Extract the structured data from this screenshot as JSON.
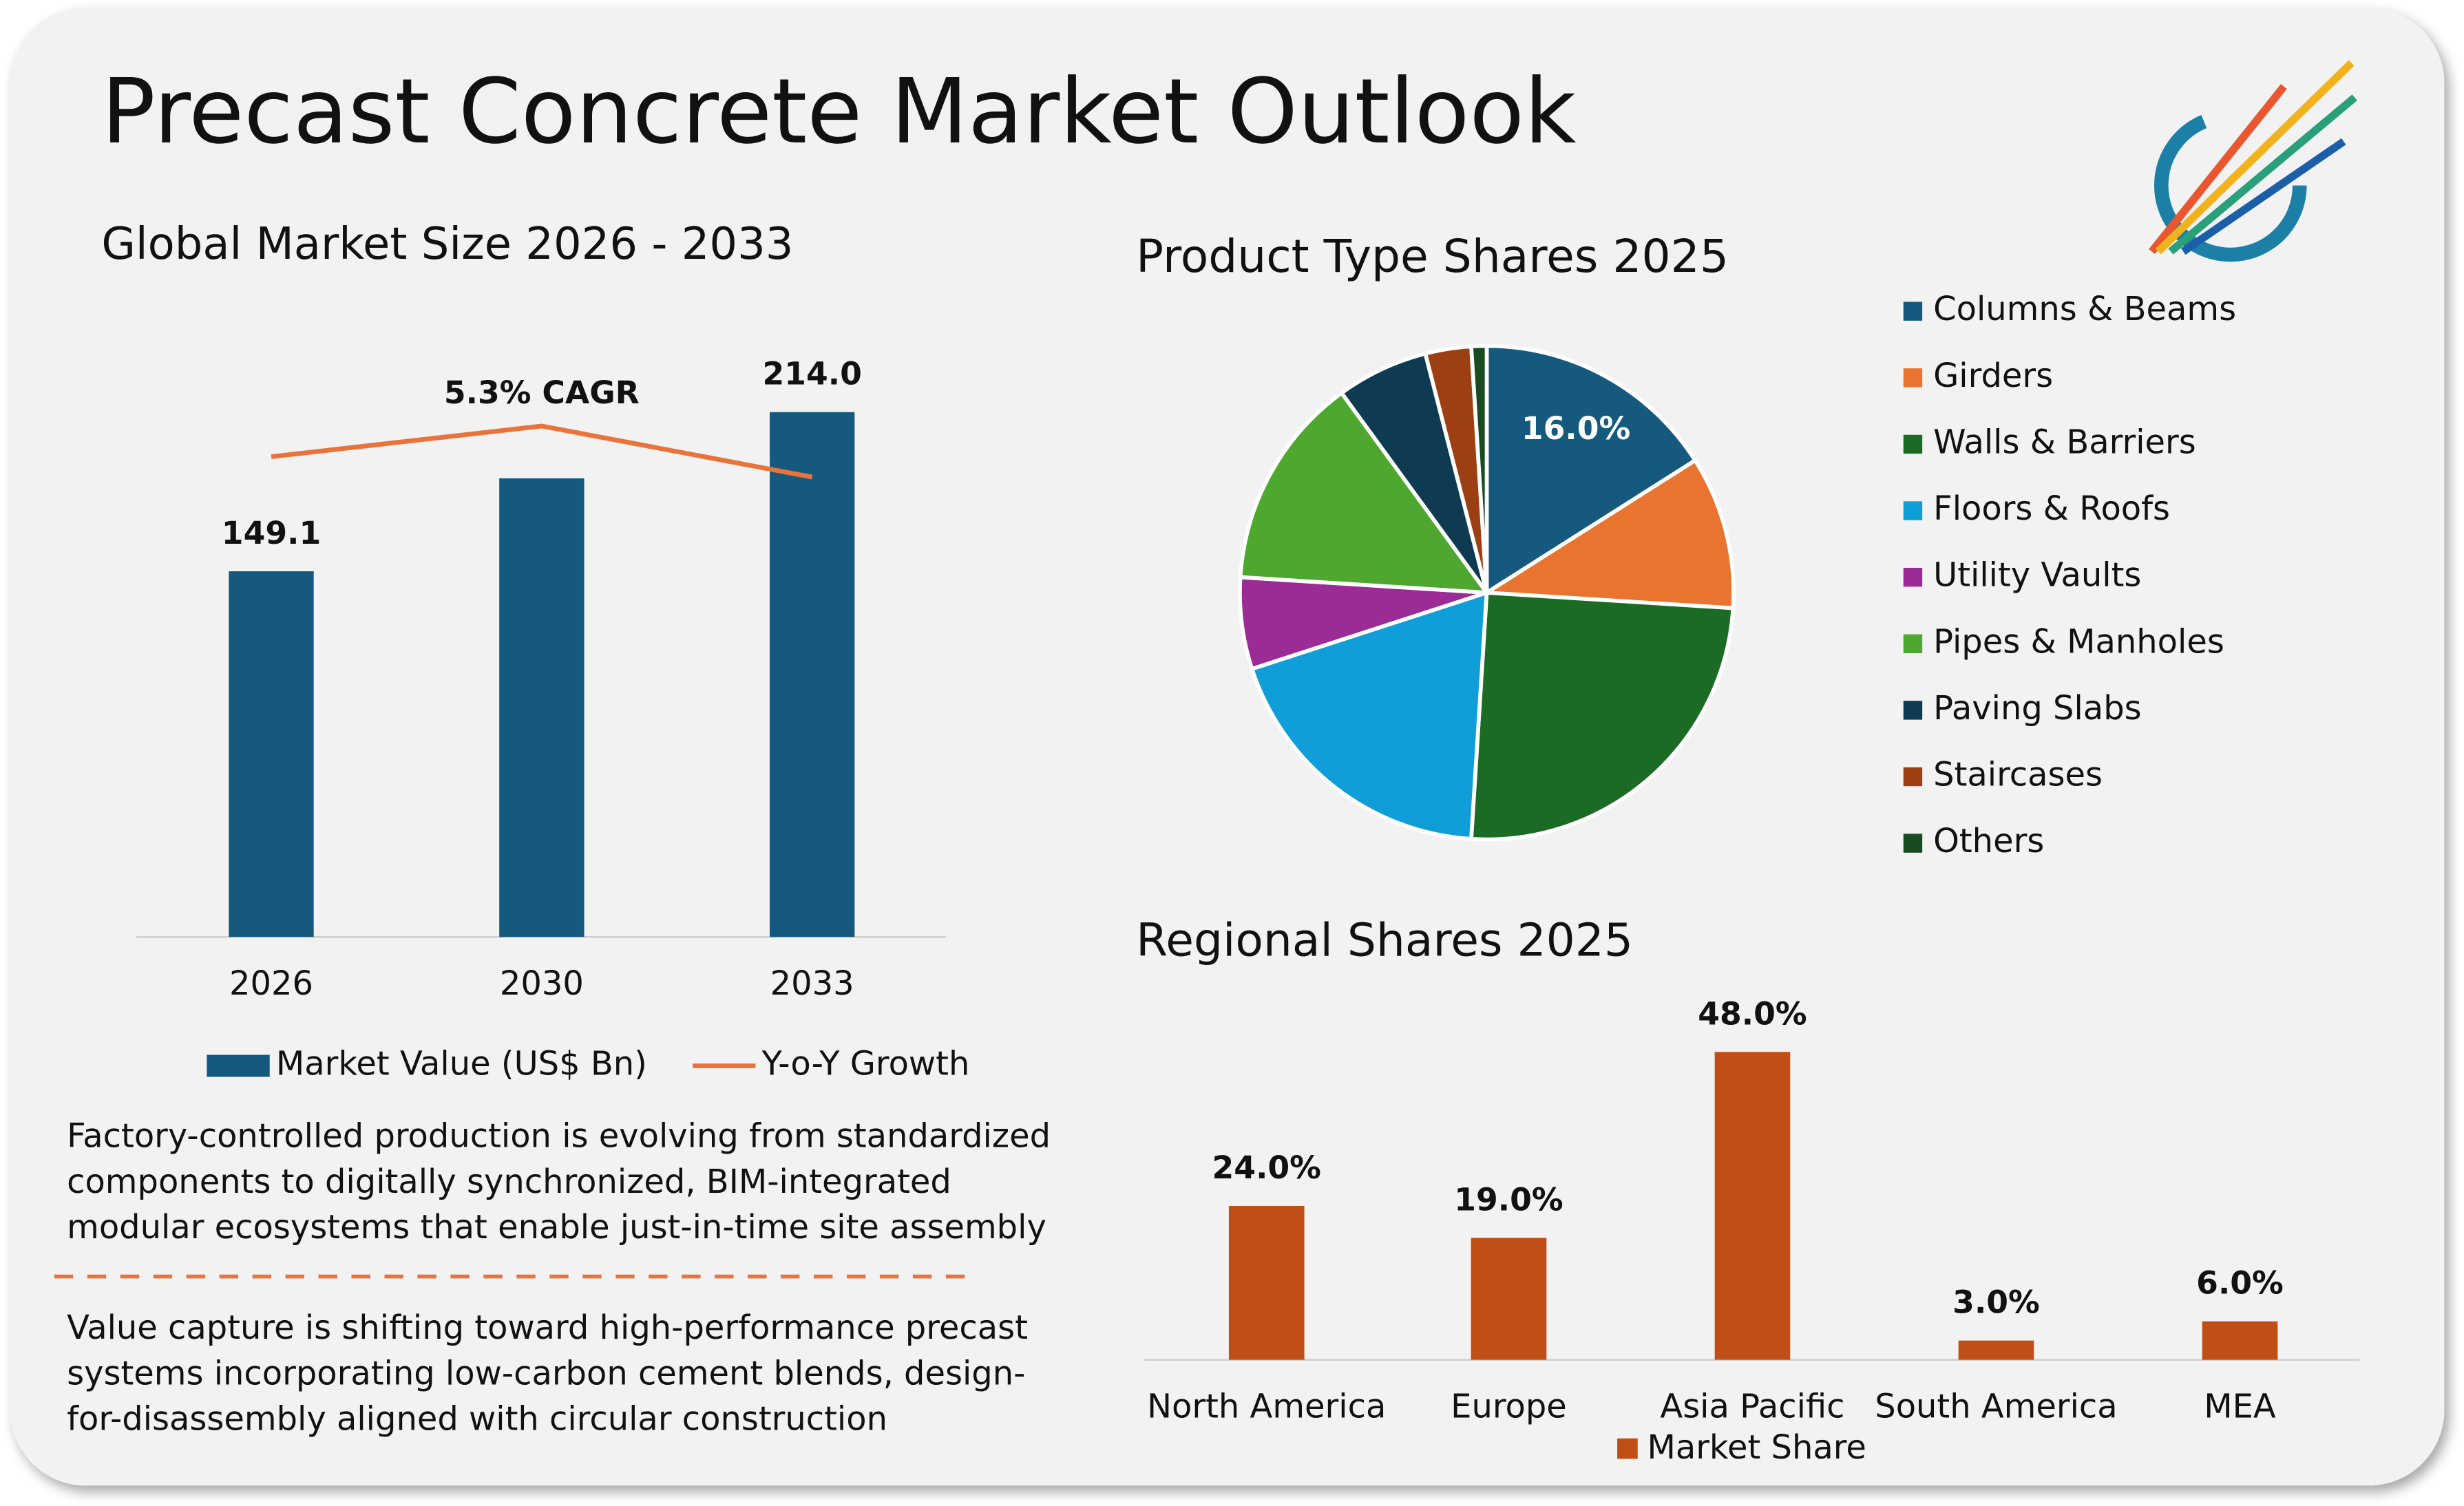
{
  "title": "Precast Concrete Market Outlook",
  "chart_data": [
    {
      "type": "bar",
      "title": "Global Market Size 2026 - 2033",
      "categories": [
        "2026",
        "2030",
        "2033"
      ],
      "series": [
        {
          "name": "Market Value (US$ Bn)",
          "color": "#155a7e",
          "values": [
            149.1,
            187.0,
            214.0
          ],
          "value_labels": [
            "149.1",
            null,
            "214.0"
          ]
        },
        {
          "name": "Y-o-Y Growth",
          "color": "#e8743b",
          "type": "line",
          "axis": "y2",
          "values": [
            4.7,
            5.0,
            4.5
          ]
        }
      ],
      "ylim": [
        0,
        250
      ],
      "y2lim": [
        0,
        6
      ],
      "annotation": "5.3% CAGR"
    },
    {
      "type": "pie",
      "title": "Product Type Shares 2025",
      "categories": [
        "Columns & Beams",
        "Girders",
        "Walls & Barriers",
        "Floors & Roofs",
        "Utility Vaults",
        "Pipes & Manholes",
        "Paving Slabs",
        "Staircases",
        "Others"
      ],
      "values": [
        16,
        10,
        25,
        19,
        6,
        14,
        6,
        3,
        1
      ],
      "value_labels": [
        "16.0%",
        null,
        null,
        null,
        null,
        null,
        null,
        null,
        null
      ],
      "colors": [
        "#155a7e",
        "#e8742f",
        "#1b6b24",
        "#109ed8",
        "#9b2c95",
        "#4ea72e",
        "#0e3a52",
        "#9c3f12",
        "#1a4a1f"
      ]
    },
    {
      "type": "bar",
      "title": "Regional Shares 2025",
      "categories": [
        "North America",
        "Europe",
        "Asia Pacific",
        "South America",
        "MEA"
      ],
      "series": [
        {
          "name": "Market Share",
          "color": "#c04f17",
          "values": [
            24,
            19,
            48,
            3,
            6
          ],
          "value_labels": [
            "24.0%",
            "19.0%",
            "48.0%",
            "3.0%",
            "6.0%"
          ]
        }
      ],
      "ylim": [
        0,
        50
      ]
    }
  ],
  "notes": [
    [
      "Factory-controlled production is evolving from standardized",
      "components to digitally synchronized, BIM-integrated",
      "modular ecosystems that enable just-in-time site assembly"
    ],
    [
      "Value capture is shifting toward high-performance precast",
      "systems incorporating low-carbon cement blends, design-",
      "for-disassembly aligned with circular construction"
    ]
  ]
}
